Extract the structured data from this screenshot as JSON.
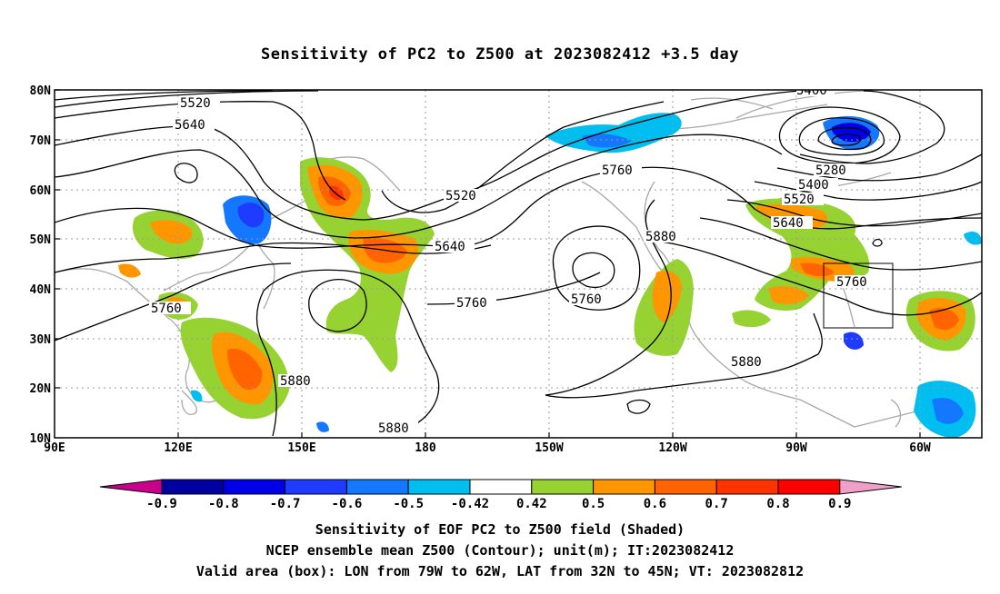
{
  "title": "Sensitivity of PC2 to Z500 at 2023082412 +3.5 day",
  "lat_labels": [
    "80N",
    "70N",
    "60N",
    "50N",
    "40N",
    "30N",
    "20N",
    "10N"
  ],
  "lon_labels": [
    "90E",
    "120E",
    "150E",
    "180",
    "150W",
    "120W",
    "90W",
    "60W"
  ],
  "contour_labels": [
    "5400",
    "5520",
    "5640",
    "5280",
    "5400",
    "5520",
    "5640",
    "5760",
    "5760",
    "5880",
    "5520",
    "5640",
    "5760",
    "5760",
    "5880",
    "5880",
    "5880",
    "5760"
  ],
  "colorbar": {
    "labels": [
      "-0.9",
      "-0.8",
      "-0.7",
      "-0.6",
      "-0.5",
      "-0.42",
      "0.42",
      "0.5",
      "0.6",
      "0.7",
      "0.8",
      "0.9"
    ],
    "colors": [
      "#c8008c",
      "#0000a0",
      "#0000e6",
      "#1e3cff",
      "#1478ff",
      "#00bef0",
      "#ffffff",
      "#96d232",
      "#ff9600",
      "#ff6400",
      "#ff3200",
      "#ff0000",
      "#f0a0c8"
    ]
  },
  "captions": [
    "Sensitivity of EOF PC2 to Z500 field (Shaded)",
    "NCEP ensemble mean Z500 (Contour); unit(m); IT:2023082412",
    "Valid area (box): LON from 79W to 62W, LAT from 32N to 45N; VT: 2023082812"
  ]
}
